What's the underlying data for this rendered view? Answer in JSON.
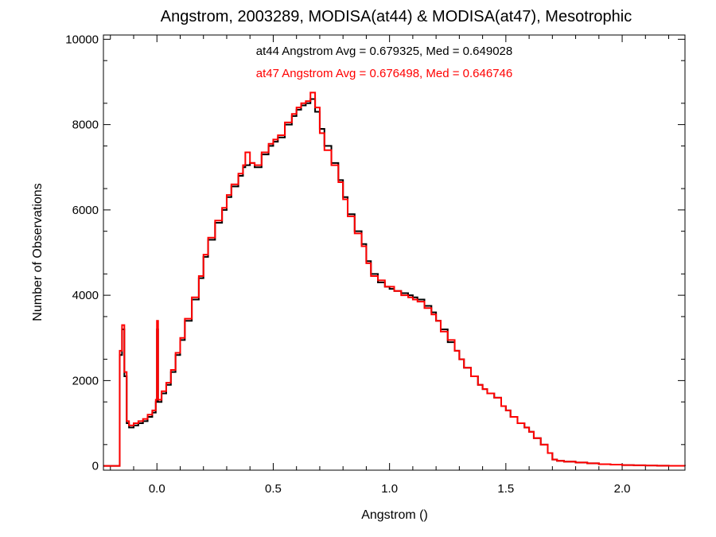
{
  "chart_data": {
    "type": "line",
    "title": "Angstrom, 2003289, MODISA(at44) & MODISA(at47), Mesotrophic",
    "xlabel": "Angstrom ()",
    "ylabel": "Number of Observations",
    "xlim": [
      -0.23,
      2.27
    ],
    "ylim": [
      -100,
      10100
    ],
    "xticks": [
      0.0,
      0.5,
      1.0,
      1.5,
      2.0
    ],
    "xtick_labels": [
      "0.0",
      "0.5",
      "1.0",
      "1.5",
      "2.0"
    ],
    "yticks": [
      0,
      2000,
      4000,
      6000,
      8000,
      10000
    ],
    "ytick_labels": [
      "0",
      "2000",
      "4000",
      "6000",
      "8000",
      "10000"
    ],
    "step": "histogram",
    "annotations": [
      {
        "text": "at44 Angstrom Avg = 0.679325, Med = 0.649028",
        "color": "#000000"
      },
      {
        "text": "at47 Angstrom Avg = 0.676498, Med = 0.646746",
        "color": "#ff0000"
      }
    ],
    "series": [
      {
        "name": "at44",
        "color": "#000000",
        "x": [
          -0.23,
          -0.17,
          -0.16,
          -0.15,
          -0.14,
          -0.13,
          -0.12,
          -0.1,
          -0.08,
          -0.06,
          -0.04,
          -0.02,
          -0.005,
          0.0,
          0.005,
          0.02,
          0.04,
          0.06,
          0.08,
          0.1,
          0.12,
          0.15,
          0.18,
          0.2,
          0.22,
          0.25,
          0.28,
          0.3,
          0.32,
          0.35,
          0.37,
          0.38,
          0.4,
          0.42,
          0.45,
          0.48,
          0.5,
          0.52,
          0.55,
          0.58,
          0.6,
          0.62,
          0.64,
          0.66,
          0.68,
          0.7,
          0.72,
          0.75,
          0.78,
          0.8,
          0.82,
          0.85,
          0.88,
          0.9,
          0.92,
          0.95,
          0.98,
          1.0,
          1.02,
          1.05,
          1.08,
          1.1,
          1.12,
          1.15,
          1.18,
          1.2,
          1.22,
          1.25,
          1.28,
          1.3,
          1.32,
          1.35,
          1.38,
          1.4,
          1.42,
          1.45,
          1.48,
          1.5,
          1.52,
          1.55,
          1.58,
          1.6,
          1.62,
          1.65,
          1.68,
          1.7,
          1.72,
          1.75,
          1.8,
          1.85,
          1.9,
          1.95,
          2.0,
          2.05,
          2.1,
          2.15,
          2.2,
          2.27
        ],
        "y": [
          0,
          0,
          2600,
          3200,
          2100,
          1000,
          900,
          950,
          1000,
          1050,
          1150,
          1250,
          1500,
          3200,
          1500,
          1700,
          1900,
          2200,
          2600,
          2950,
          3400,
          3900,
          4400,
          4900,
          5300,
          5700,
          6000,
          6300,
          6550,
          6800,
          7000,
          7050,
          7100,
          7000,
          7300,
          7500,
          7600,
          7700,
          8000,
          8200,
          8350,
          8450,
          8500,
          8600,
          8300,
          7900,
          7500,
          7100,
          6700,
          6300,
          5900,
          5500,
          5200,
          4800,
          4500,
          4300,
          4200,
          4150,
          4100,
          4050,
          4000,
          3950,
          3900,
          3750,
          3600,
          3400,
          3200,
          2900,
          2700,
          2500,
          2300,
          2100,
          1900,
          1800,
          1700,
          1600,
          1400,
          1300,
          1150,
          1000,
          900,
          800,
          650,
          500,
          300,
          150,
          120,
          100,
          80,
          60,
          40,
          30,
          20,
          15,
          10,
          5,
          3,
          0
        ]
      },
      {
        "name": "at47",
        "color": "#ff0000",
        "x": [
          -0.23,
          -0.17,
          -0.16,
          -0.15,
          -0.14,
          -0.13,
          -0.12,
          -0.1,
          -0.08,
          -0.06,
          -0.04,
          -0.02,
          -0.005,
          0.0,
          0.005,
          0.02,
          0.04,
          0.06,
          0.08,
          0.1,
          0.12,
          0.15,
          0.18,
          0.2,
          0.22,
          0.25,
          0.28,
          0.3,
          0.32,
          0.35,
          0.37,
          0.38,
          0.4,
          0.42,
          0.45,
          0.48,
          0.5,
          0.52,
          0.55,
          0.58,
          0.6,
          0.62,
          0.64,
          0.66,
          0.68,
          0.7,
          0.72,
          0.75,
          0.78,
          0.8,
          0.82,
          0.85,
          0.88,
          0.9,
          0.92,
          0.95,
          0.98,
          1.0,
          1.02,
          1.05,
          1.08,
          1.1,
          1.12,
          1.15,
          1.18,
          1.2,
          1.22,
          1.25,
          1.28,
          1.3,
          1.32,
          1.35,
          1.38,
          1.4,
          1.42,
          1.45,
          1.48,
          1.5,
          1.52,
          1.55,
          1.58,
          1.6,
          1.62,
          1.65,
          1.68,
          1.7,
          1.72,
          1.75,
          1.8,
          1.85,
          1.9,
          1.95,
          2.0,
          2.05,
          2.1,
          2.15,
          2.2,
          2.27
        ],
        "y": [
          0,
          0,
          2700,
          3300,
          2200,
          1050,
          950,
          1000,
          1050,
          1100,
          1200,
          1300,
          1550,
          3400,
          1550,
          1750,
          1950,
          2250,
          2650,
          3000,
          3450,
          3950,
          4450,
          4950,
          5350,
          5750,
          6050,
          6350,
          6600,
          6850,
          7050,
          7350,
          7100,
          7050,
          7350,
          7550,
          7650,
          7750,
          8050,
          8250,
          8400,
          8500,
          8550,
          8750,
          8400,
          7800,
          7400,
          7050,
          6650,
          6250,
          5850,
          5450,
          5150,
          4750,
          4450,
          4350,
          4200,
          4200,
          4100,
          4000,
          3950,
          3900,
          3850,
          3700,
          3550,
          3400,
          3150,
          2950,
          2700,
          2500,
          2300,
          2100,
          1900,
          1800,
          1700,
          1600,
          1400,
          1300,
          1150,
          1000,
          900,
          800,
          650,
          500,
          300,
          150,
          120,
          100,
          80,
          60,
          40,
          30,
          20,
          15,
          10,
          5,
          3,
          0
        ]
      }
    ]
  }
}
